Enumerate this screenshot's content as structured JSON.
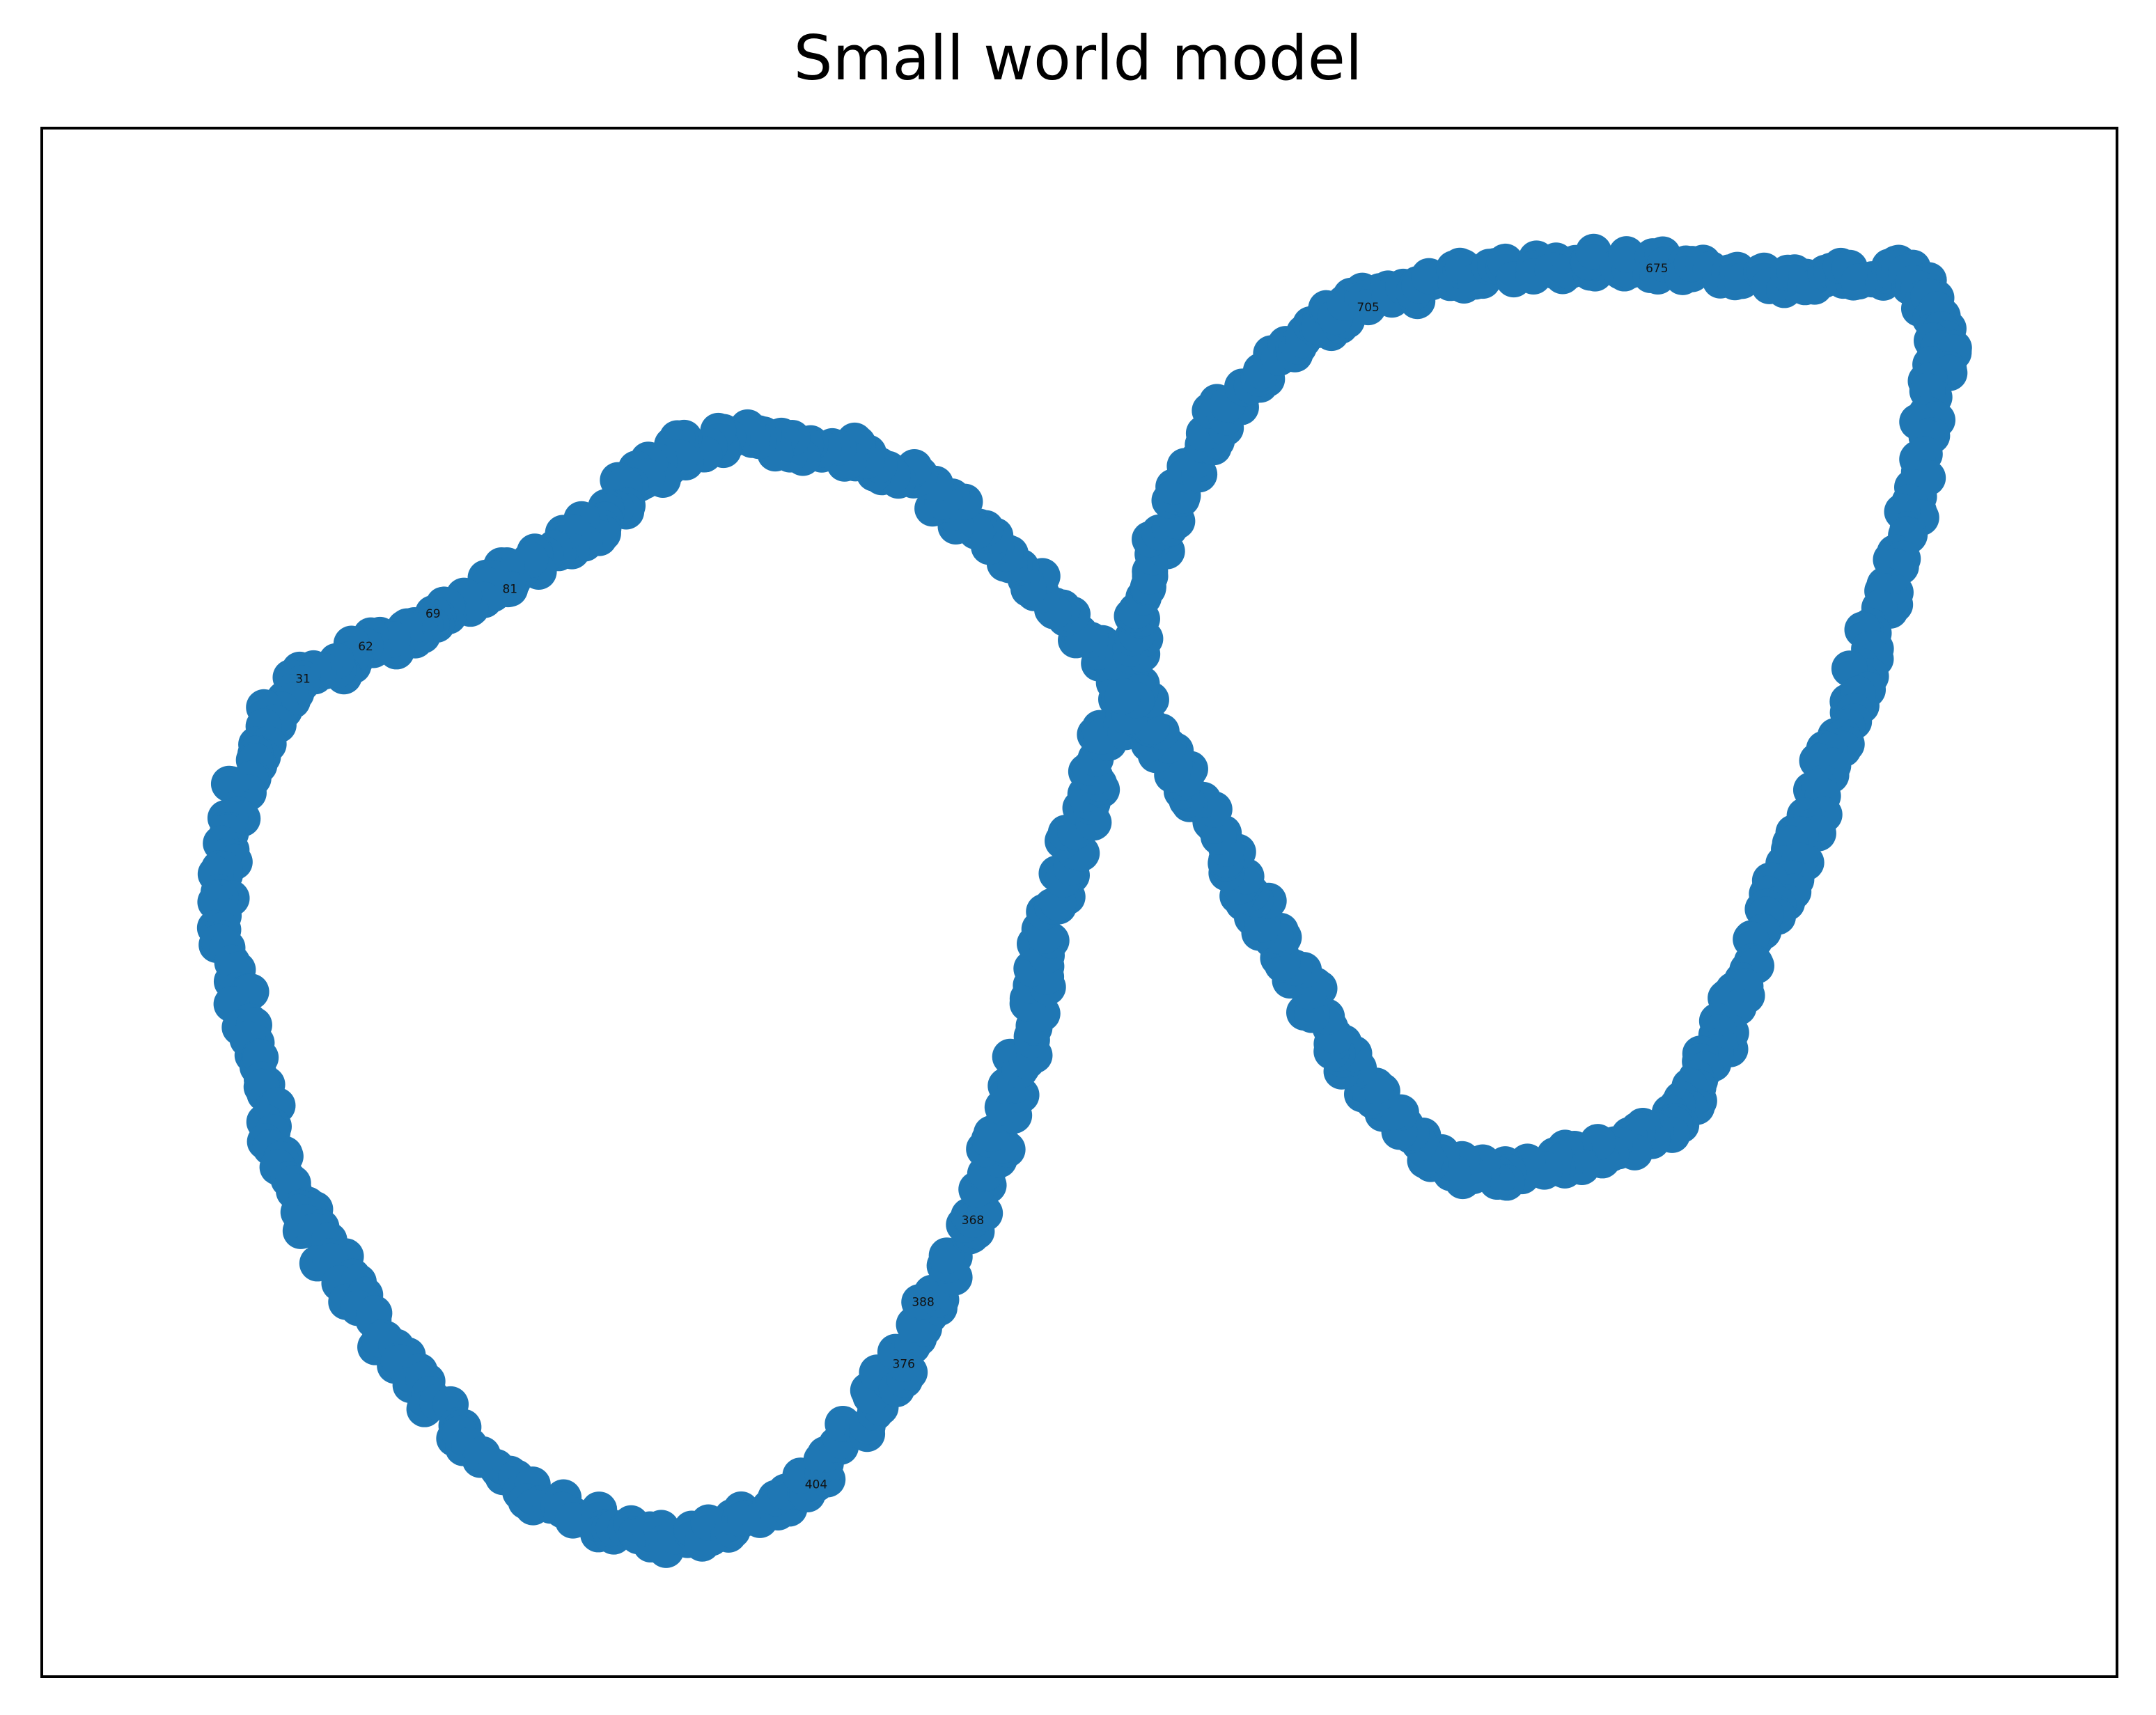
{
  "title": "Small world model",
  "graph": {
    "node_color": "#1f77b4",
    "edge_color": "#000000",
    "frame_color": "#000000",
    "node_label_color": "#111111",
    "shape": "figure-eight ring lattice",
    "nodes_visible_labels": [
      "705",
      "404",
      "675",
      "368",
      "388",
      "376",
      "69",
      "31",
      "62",
      "81"
    ]
  }
}
